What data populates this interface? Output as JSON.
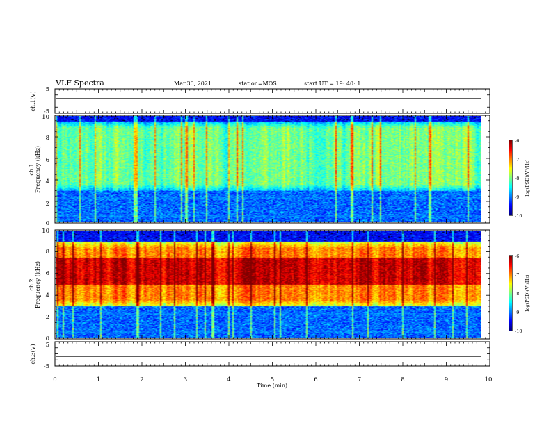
{
  "header": {
    "title": "VLF Spectra",
    "date": "Mar.30, 2021",
    "station": "station=MOS",
    "start_ut": "start  UT =   19: 40: 1"
  },
  "chart_data": [
    {
      "type": "line",
      "panel": "ch.1 waveform",
      "ylabel": "ch.1(V)",
      "ylim": [
        -5,
        5
      ],
      "y_ticks": [
        "5",
        "-5"
      ],
      "xlim": [
        0,
        10
      ],
      "series": [
        {
          "values": [
            0,
            0
          ]
        }
      ]
    },
    {
      "type": "heatmap",
      "panel": "ch.1 spectrogram",
      "ylabel": "ch.1\nFrequency (kHz)",
      "ylim": [
        0,
        10
      ],
      "y_ticks": [
        "0",
        "2",
        "4",
        "6",
        "8",
        "10"
      ],
      "xlim": [
        0,
        9.85
      ],
      "colorbar": {
        "label": "log(PSD)(V²/Hz)",
        "range": [
          -10,
          -6
        ],
        "ticks": [
          "-6",
          "-7",
          "-8",
          "-9",
          "-10"
        ]
      },
      "dominant_band_khz": [
        3,
        9.5
      ],
      "typical_log_psd": -8
    },
    {
      "type": "heatmap",
      "panel": "ch.2 spectrogram",
      "ylabel": "ch.2\nFrequency (kHz)",
      "ylim": [
        0,
        10
      ],
      "y_ticks": [
        "0",
        "2",
        "4",
        "6",
        "8",
        "10"
      ],
      "xlim": [
        0,
        9.85
      ],
      "colorbar": {
        "label": "log(PSD)(V²/Hz)",
        "range": [
          -10,
          -6
        ],
        "ticks": [
          "-6",
          "-7",
          "-8",
          "-9",
          "-10"
        ]
      },
      "dominant_band_khz": [
        3,
        9
      ],
      "peak_band_khz": [
        5,
        7.5
      ],
      "typical_log_psd": -7
    },
    {
      "type": "line",
      "panel": "ch.3 waveform",
      "ylabel": "ch.3(V)",
      "ylim": [
        -5,
        5
      ],
      "y_ticks": [
        "5",
        "-5"
      ],
      "xlim": [
        0,
        10
      ],
      "series": [
        {
          "values": [
            0,
            0
          ]
        }
      ]
    }
  ],
  "x_axis": {
    "label": "Time  (min)",
    "ticks": [
      "0",
      "1",
      "2",
      "3",
      "4",
      "5",
      "6",
      "7",
      "8",
      "9",
      "10"
    ]
  },
  "colors": {
    "frame": "#000000",
    "background": "#ffffff"
  }
}
